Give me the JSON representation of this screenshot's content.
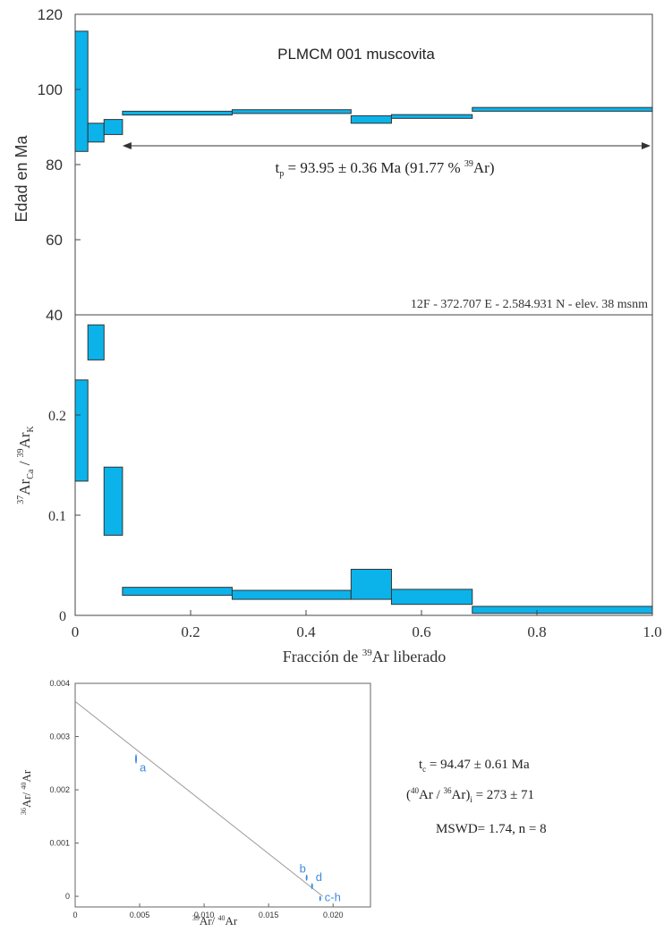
{
  "colors": {
    "fill": "#0bb3ea",
    "stroke": "#333333",
    "axis": "#444444",
    "isochron_line": "#999999",
    "isochron_points": "#3d8be0",
    "isochron_labels": "#3d8be0"
  },
  "chart_data": [
    {
      "type": "step-spectrum",
      "panel": "age",
      "title": "PLMCM 001 muscovita",
      "ylabel": "Edad en Ma",
      "ylim": [
        40,
        120
      ],
      "xlim": [
        0,
        1.0
      ],
      "yticks": [
        "40",
        "60",
        "80",
        "100",
        "120"
      ],
      "yticks_values": [
        40,
        60,
        80,
        100,
        120
      ],
      "steps": [
        {
          "x0": 0.0,
          "x1": 0.022,
          "lo": 83.5,
          "hi": 115.5
        },
        {
          "x0": 0.022,
          "x1": 0.05,
          "lo": 86.0,
          "hi": 91.0
        },
        {
          "x0": 0.05,
          "x1": 0.082,
          "lo": 88.0,
          "hi": 92.0
        },
        {
          "x0": 0.082,
          "x1": 0.272,
          "lo": 93.2,
          "hi": 94.2
        },
        {
          "x0": 0.272,
          "x1": 0.478,
          "lo": 93.6,
          "hi": 94.6
        },
        {
          "x0": 0.478,
          "x1": 0.548,
          "lo": 91.0,
          "hi": 93.0
        },
        {
          "x0": 0.548,
          "x1": 0.688,
          "lo": 92.3,
          "hi": 93.3
        },
        {
          "x0": 0.688,
          "x1": 1.0,
          "lo": 94.2,
          "hi": 95.2
        }
      ],
      "plateau": {
        "x_start": 0.082,
        "x_end": 1.0,
        "y": 85,
        "label_main": "t",
        "label_sub": "p",
        "label_value": " = 93.95 ± 0.36 Ma (91.77 % ",
        "label_sup": "39",
        "label_end": "Ar)"
      },
      "location": "12F - 372.707 E - 2.584.931 N - elev. 38 msnm"
    },
    {
      "type": "step-spectrum",
      "panel": "ca-k",
      "ylabel_parts": {
        "sup1": "37",
        "main1": "Ar",
        "sub1": "Ca",
        "mid": " / ",
        "sup2": "39",
        "main2": "Ar",
        "sub2": "K"
      },
      "ylim": [
        0,
        0.3
      ],
      "xlim": [
        0,
        1.0
      ],
      "yticks": [
        "0",
        "0.1",
        "0.2"
      ],
      "yticks_values": [
        0,
        0.1,
        0.2
      ],
      "xticks": [
        "0",
        "0.2",
        "0.4",
        "0.6",
        "0.8",
        "1.0"
      ],
      "xticks_values": [
        0,
        0.2,
        0.4,
        0.6,
        0.8,
        1.0
      ],
      "xlabel_parts": {
        "pre": "Fracción de ",
        "sup": "39",
        "post": "Ar liberado"
      },
      "steps": [
        {
          "x0": 0.0,
          "x1": 0.022,
          "lo": 0.134,
          "hi": 0.235
        },
        {
          "x0": 0.022,
          "x1": 0.05,
          "lo": 0.255,
          "hi": 0.29
        },
        {
          "x0": 0.05,
          "x1": 0.082,
          "lo": 0.08,
          "hi": 0.148
        },
        {
          "x0": 0.082,
          "x1": 0.272,
          "lo": 0.02,
          "hi": 0.028
        },
        {
          "x0": 0.272,
          "x1": 0.478,
          "lo": 0.016,
          "hi": 0.025
        },
        {
          "x0": 0.478,
          "x1": 0.548,
          "lo": 0.016,
          "hi": 0.046
        },
        {
          "x0": 0.548,
          "x1": 0.688,
          "lo": 0.011,
          "hi": 0.026
        },
        {
          "x0": 0.688,
          "x1": 1.0,
          "lo": 0.002,
          "hi": 0.009
        }
      ]
    },
    {
      "type": "scatter",
      "panel": "isochron",
      "xlim": [
        0,
        0.0229
      ],
      "ylim": [
        -0.0002,
        0.004
      ],
      "xticks": [
        "0",
        "0.005",
        "0.010",
        "0.015",
        "0.020"
      ],
      "xticks_values": [
        0,
        0.005,
        0.01,
        0.015,
        0.02
      ],
      "yticks": [
        "0",
        "0.001",
        "0.002",
        "0.003",
        "0.004"
      ],
      "yticks_values": [
        0,
        0.001,
        0.002,
        0.003,
        0.004
      ],
      "xlabel_parts": {
        "sup1": "39",
        "main1": "Ar/ ",
        "sup2": "40",
        "main2": "Ar"
      },
      "ylabel_parts": {
        "sup1": "36",
        "main1": "Ar/ ",
        "sup2": "40",
        "main2": "Ar"
      },
      "fit_line": {
        "x0": 0,
        "y0": 0.00366,
        "x1": 0.0192,
        "y1": 0.0
      },
      "points": [
        {
          "label": "a",
          "x": 0.00472,
          "y": 0.00258,
          "sx": 2e-05,
          "sy": 9e-05
        },
        {
          "label": "b",
          "x": 0.01795,
          "y": 0.00035,
          "sx": 7e-05,
          "sy": 6e-05
        },
        {
          "label": "d",
          "x": 0.01837,
          "y": 0.00019,
          "sx": 6e-05,
          "sy": 6e-05
        },
        {
          "label": "c-h",
          "x": 0.019,
          "y": -4e-05,
          "sx": 3e-05,
          "sy": 5e-05
        }
      ],
      "stats": {
        "tc_main": "t",
        "tc_sub": "c",
        "tc_value": " = 94.47 ± 0.61 Ma",
        "ratio_open": "(",
        "ratio_sup1": "40",
        "ratio_mid": "Ar / ",
        "ratio_sup2": "36",
        "ratio_close": "Ar)",
        "ratio_sub": "i",
        "ratio_value": " = 273 ± 71",
        "mswd": "MSWD= 1.74, n = 8"
      }
    }
  ]
}
